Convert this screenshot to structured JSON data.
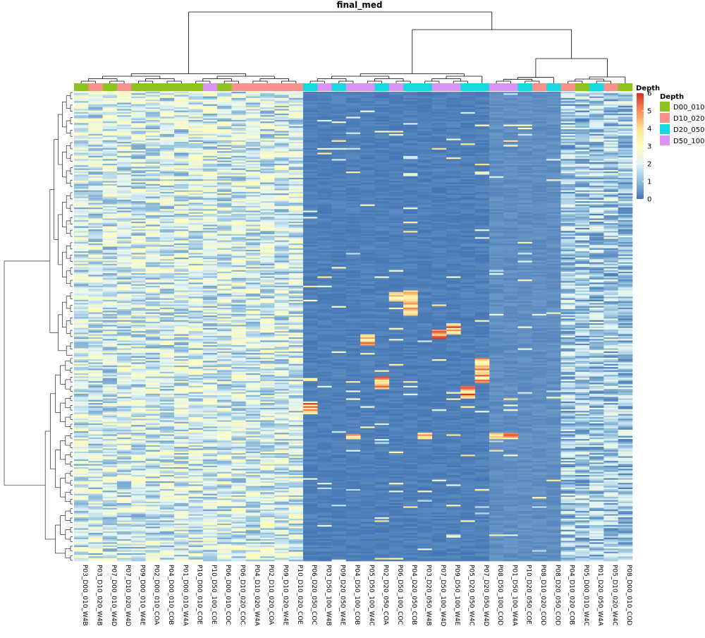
{
  "chart_data": {
    "type": "heatmap",
    "title": "final_med",
    "columns": [
      "P03_D00_010_W4B",
      "P03_D10_020_W4B",
      "P07_D00_010_W4D",
      "P07_D10_020_W4D",
      "P09_D00_010_W4E",
      "P02_D00_010_COA",
      "P04_D00_010_COB",
      "P01_D00_010_W4A",
      "P10_D00_010_COE",
      "P10_D50_100_COE",
      "P06_D00_010_COC",
      "P06_D10_020_COC",
      "P04_D10_020_W4A",
      "P02_D10_020_COA",
      "P09_D10_020_W4E",
      "P10_D10_020_COE",
      "P06_D20_050_COC",
      "P03_D50_100_W4B",
      "P09_D20_050_W4E",
      "P04_D50_100_COB",
      "P05_D50_100_W4C",
      "P02_D20_050_COA",
      "P06_D50_100_COC",
      "P04_D20_050_COB",
      "P03_D20_050_W4B",
      "P07_D50_100_W4D",
      "P09_D50_100_W4E",
      "P05_D20_050_W4C",
      "P07_D20_050_W4D",
      "P08_D50_100_COD",
      "P01_D50_100_W4A",
      "P10_D20_050_COE",
      "P08_D10_020_COD",
      "P08_D20_050_COD",
      "P04_D10_020_COB",
      "P05_D00_010_W4C",
      "P01_D20_050_W4A",
      "P05_D10_020_W4C",
      "P08_D00_010_COD"
    ],
    "depth_annotation": [
      "D00_010",
      "D10_020",
      "D00_010",
      "D10_020",
      "D00_010",
      "D00_010",
      "D00_010",
      "D00_010",
      "D00_010",
      "D50_100",
      "D00_010",
      "D10_020",
      "D10_020",
      "D10_020",
      "D10_020",
      "D10_020",
      "D20_050",
      "D50_100",
      "D20_050",
      "D50_100",
      "D50_100",
      "D20_050",
      "D50_100",
      "D20_050",
      "D20_050",
      "D50_100",
      "D50_100",
      "D20_050",
      "D20_050",
      "D50_100",
      "D50_100",
      "D20_050",
      "D10_020",
      "D20_050",
      "D10_020",
      "D00_010",
      "D20_050",
      "D10_020",
      "D00_010"
    ],
    "annotation_legend": {
      "title": "Depth",
      "items": [
        {
          "label": "D00_010",
          "color": "#8DC21F"
        },
        {
          "label": "D10_020",
          "color": "#F7918A"
        },
        {
          "label": "D20_050",
          "color": "#17D7E3"
        },
        {
          "label": "D50_100",
          "color": "#DB92F5"
        }
      ]
    },
    "color_scale": {
      "title": "Depth",
      "min": 0,
      "max": 6,
      "ticks": [
        0,
        1,
        2,
        3,
        4,
        5,
        6
      ],
      "colors": [
        "#4575B4",
        "#91BFDB",
        "#E0F3F8",
        "#FFFFBF",
        "#FEE090",
        "#FC8D59",
        "#D73027"
      ]
    },
    "column_cluster_groups": "two main clusters: columns 1-16 (high values) and 17-39 (low values, with columns 35-39 elevated)",
    "row_count_approx": 300
  }
}
